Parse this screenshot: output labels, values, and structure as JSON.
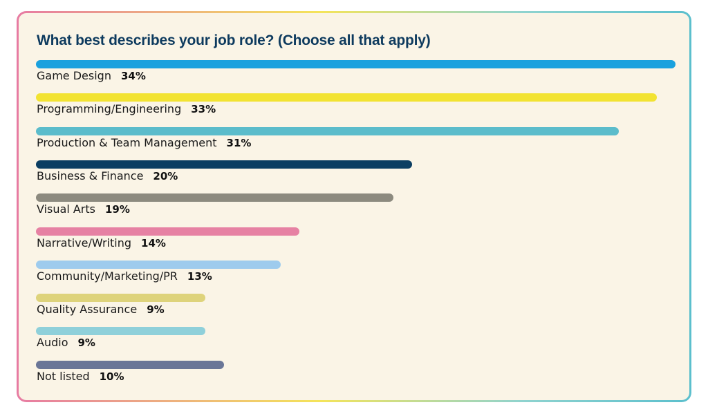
{
  "title": "What best describes your job role? (Choose all that apply)",
  "chart_data": {
    "type": "bar",
    "orientation": "horizontal",
    "title": "What best describes your job role? (Choose all that apply)",
    "categories": [
      "Game Design",
      "Programming/Engineering",
      "Production & Team Management",
      "Business & Finance",
      "Visual Arts",
      "Narrative/Writing",
      "Community/Marketing/PR",
      "Quality Assurance",
      "Audio",
      "Not listed"
    ],
    "values": [
      34,
      33,
      31,
      20,
      19,
      14,
      13,
      9,
      9,
      10
    ],
    "value_labels": [
      "34%",
      "33%",
      "31%",
      "20%",
      "19%",
      "14%",
      "13%",
      "9%",
      "9%",
      "10%"
    ],
    "colors": [
      "#1aa1de",
      "#f2e332",
      "#5bbccb",
      "#0b3e62",
      "#8c8a7f",
      "#e681a3",
      "#9ecbed",
      "#ded37b",
      "#8fd0da",
      "#6a7697"
    ],
    "unit": "%",
    "xlim": [
      0,
      34
    ]
  }
}
